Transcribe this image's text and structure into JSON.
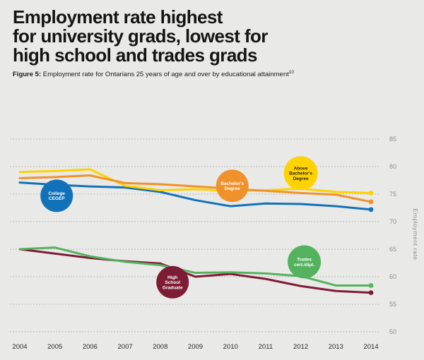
{
  "header": {
    "title": "Employment rate highest\nfor university grads, lowest for\nhigh school and trades grads",
    "figure_label": "Figure 5:",
    "caption": " Employment rate for Ontarians 25 years of age and over by educational attainment",
    "footnote_marker": "10"
  },
  "colors": {
    "background": "#e9e9e7",
    "title_text": "#141414",
    "grid_line": "#a9a9a7",
    "tick_text": "#8f8f8d",
    "year_text": "#2b2b2b",
    "axis_title_text": "#8f8f8d"
  },
  "chart_data": {
    "type": "line",
    "title": "",
    "xlabel": "",
    "ylabel": "Employment rate",
    "x": [
      2004,
      2005,
      2006,
      2007,
      2008,
      2009,
      2010,
      2011,
      2012,
      2013,
      2014
    ],
    "ylim": [
      50,
      85
    ],
    "yticks": [
      85,
      80,
      75,
      70,
      65,
      60,
      55,
      50
    ],
    "grid": "dotted-horizontal",
    "legend_position": "on-line-badges",
    "series": [
      {
        "name": "College CEGEP",
        "slug": "college-cegep",
        "color": "#1272b9",
        "values": [
          77.1,
          76.7,
          76.4,
          76.2,
          75.4,
          73.9,
          72.8,
          73.3,
          73.2,
          72.8,
          72.2
        ],
        "badge": {
          "lines": [
            "College",
            "CEGEP"
          ],
          "x": 2005.05,
          "y": 74.7,
          "r": 23,
          "text_color": "#ffffff"
        }
      },
      {
        "name": "Above Bachelor's Degree",
        "slug": "above-bachelors-degree",
        "color": "#ffd200",
        "values": [
          79.0,
          79.2,
          79.5,
          76.5,
          75.7,
          75.9,
          75.6,
          75.7,
          76.0,
          75.4,
          75.2
        ],
        "badge": {
          "lines": [
            "Above",
            "Bachelor's",
            "Degree"
          ],
          "x": 2012.0,
          "y": 78.8,
          "r": 24,
          "text_color": "#1f1f1f"
        }
      },
      {
        "name": "Bachelor's Degree",
        "slug": "bachelors-degree",
        "color": "#f0922b",
        "values": [
          77.9,
          78.1,
          78.4,
          77.0,
          76.8,
          76.4,
          76.0,
          75.6,
          75.2,
          74.9,
          73.6
        ],
        "badge": {
          "lines": [
            "Bachelor's",
            "Degree"
          ],
          "x": 2010.05,
          "y": 76.5,
          "r": 23,
          "text_color": "#ffffff"
        }
      },
      {
        "name": "High School Graduate",
        "slug": "high-school-graduate",
        "color": "#7d1c35",
        "values": [
          65.0,
          64.2,
          63.4,
          62.8,
          62.4,
          60.0,
          60.5,
          59.6,
          58.3,
          57.4,
          57.1
        ],
        "badge": {
          "lines": [
            "High",
            "School",
            "Graduate"
          ],
          "x": 2008.35,
          "y": 59.0,
          "r": 23,
          "text_color": "#ffffff"
        }
      },
      {
        "name": "Trades cert./dipl.",
        "slug": "trades-cert-dipl",
        "color": "#54b25f",
        "values": [
          65.0,
          65.3,
          63.7,
          62.7,
          62.1,
          60.7,
          60.8,
          60.6,
          60.1,
          58.4,
          58.4
        ],
        "badge": {
          "lines": [
            "Trades",
            "cert./dipl."
          ],
          "x": 2012.1,
          "y": 62.7,
          "r": 23.5,
          "text_color": "#ffffff"
        }
      }
    ]
  }
}
